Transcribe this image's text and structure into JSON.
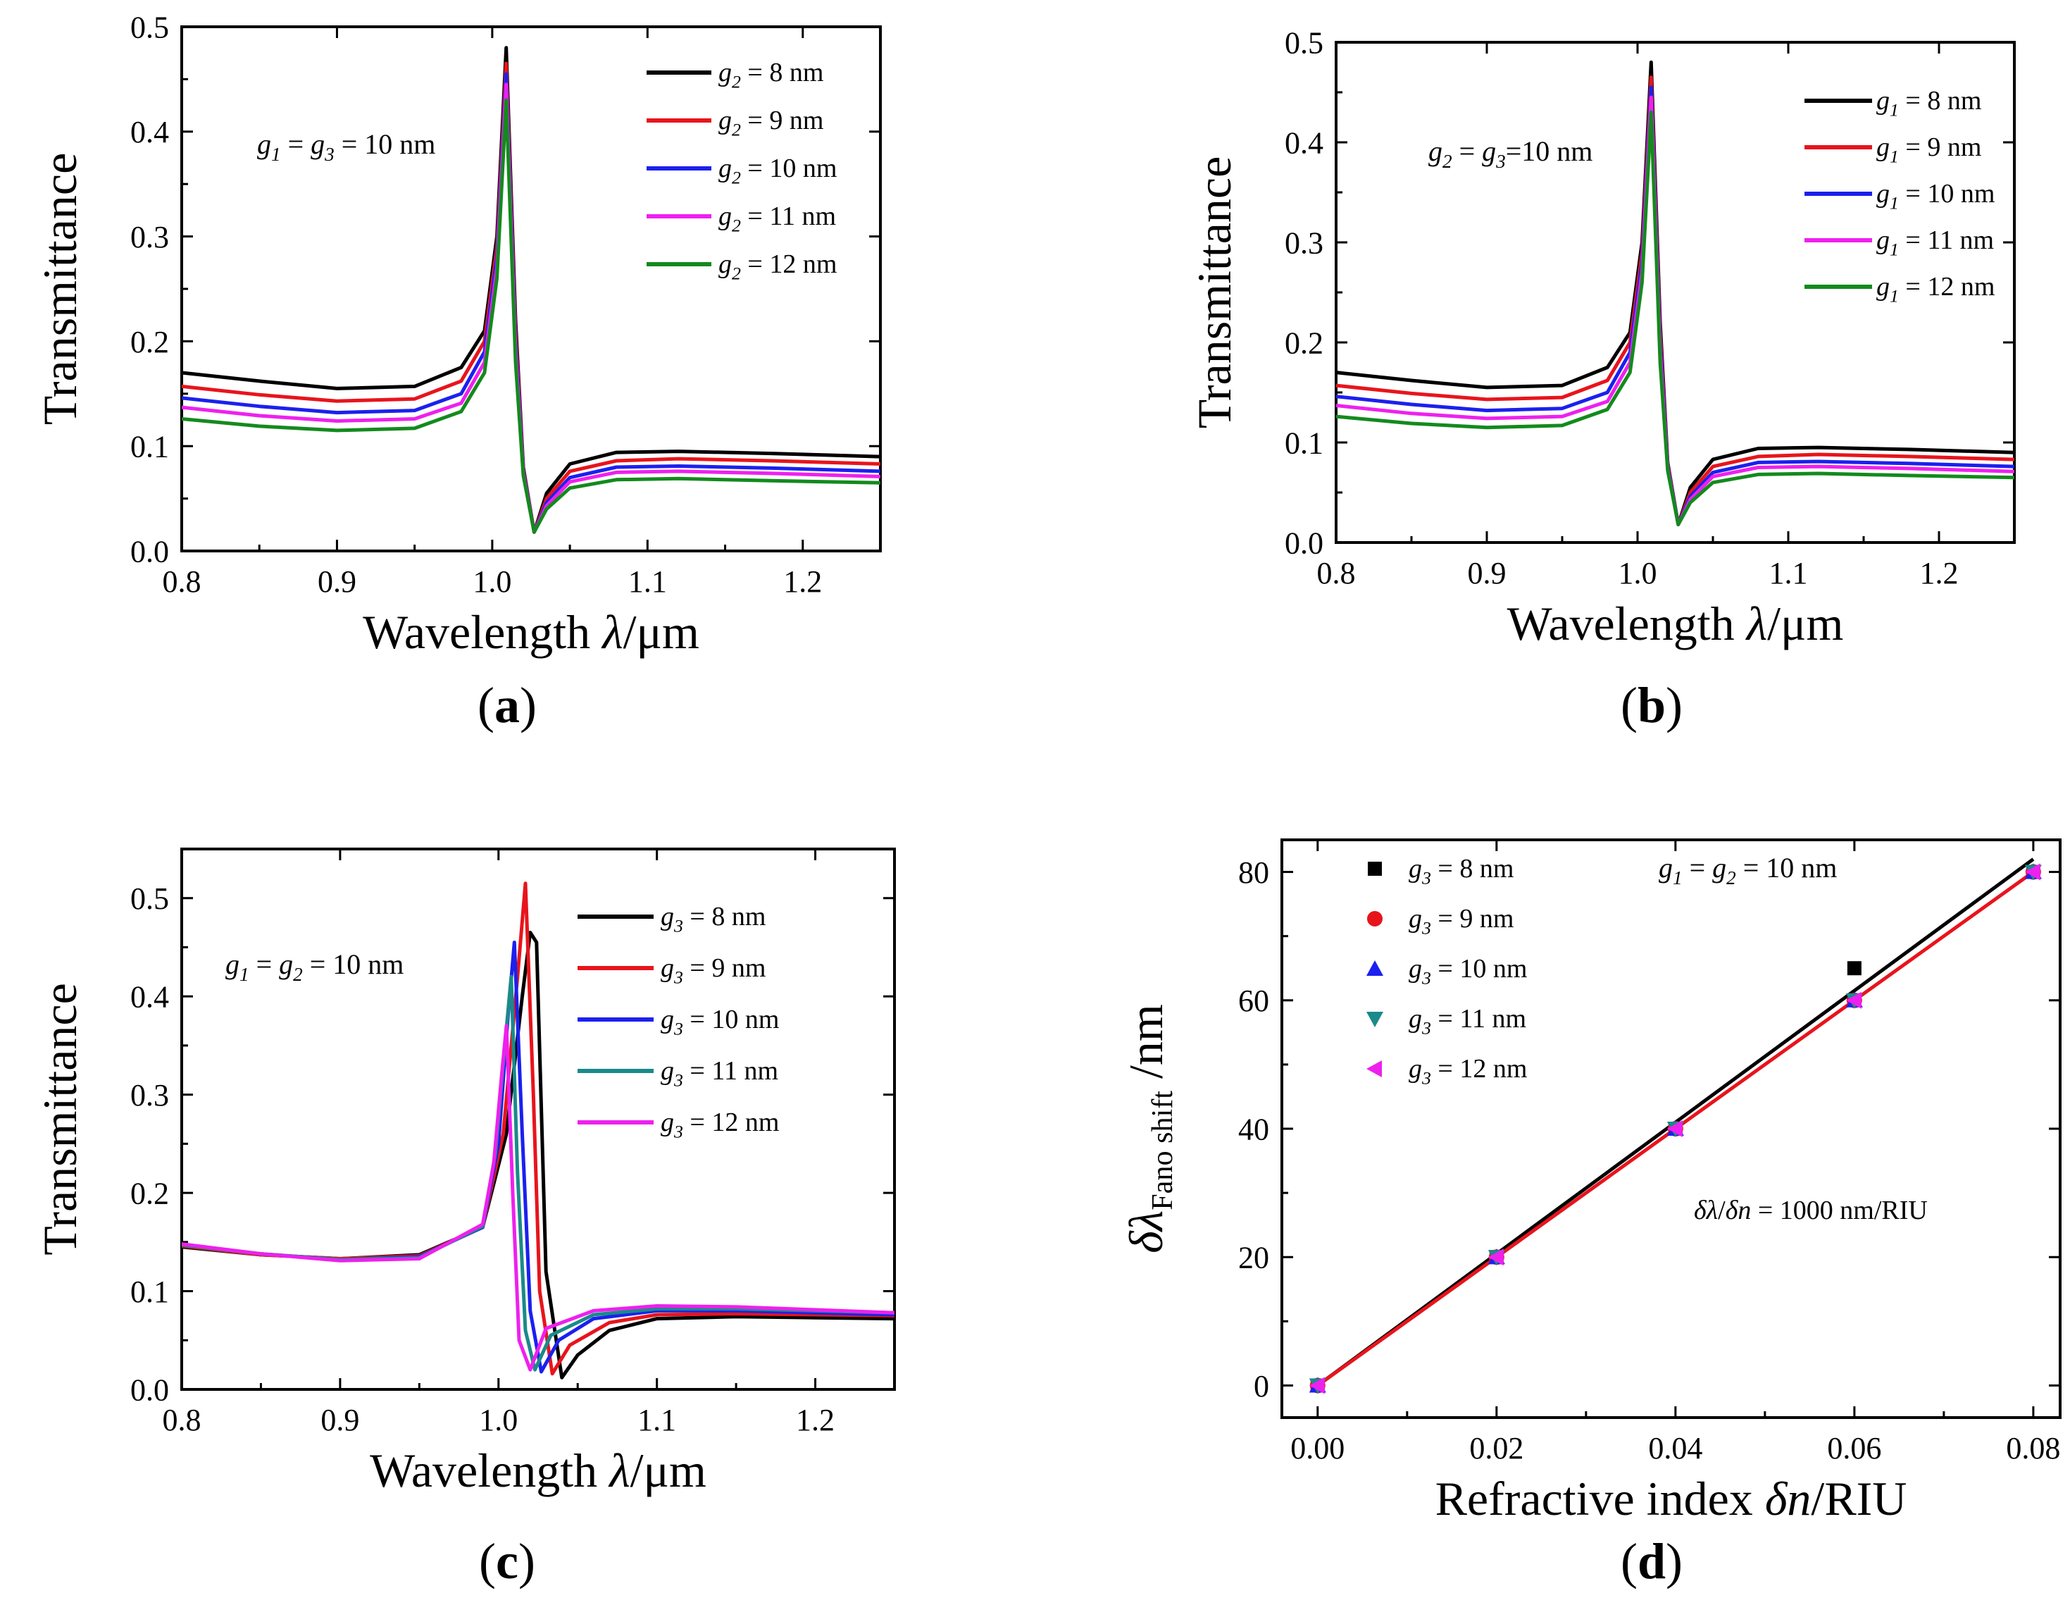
{
  "chart_data": [
    {
      "panel": "(a)",
      "type": "line",
      "xlabel": "Wavelength λ/μm",
      "ylabel": "Transmittance",
      "xlim": [
        0.8,
        1.25
      ],
      "ylim": [
        0.0,
        0.5
      ],
      "xticks": [
        "0.8",
        "0.9",
        "1.0",
        "1.1",
        "1.2"
      ],
      "yticks": [
        "0.0",
        "0.1",
        "0.2",
        "0.3",
        "0.4",
        "0.5"
      ],
      "annotation": "g1 = g3 = 10 nm",
      "legend_position": "top-right",
      "series": [
        {
          "name": "g2 = 8 nm",
          "color": "#000000",
          "x": [
            0.8,
            0.85,
            0.9,
            0.95,
            0.98,
            0.995,
            1.003,
            1.009,
            1.015,
            1.02,
            1.027,
            1.035,
            1.05,
            1.08,
            1.12,
            1.18,
            1.25
          ],
          "y": [
            0.17,
            0.162,
            0.155,
            0.157,
            0.175,
            0.21,
            0.3,
            0.48,
            0.22,
            0.08,
            0.018,
            0.055,
            0.083,
            0.094,
            0.095,
            0.093,
            0.09
          ]
        },
        {
          "name": "g2 = 9 nm",
          "color": "#e8141c",
          "x": [
            0.8,
            0.85,
            0.9,
            0.95,
            0.98,
            0.995,
            1.003,
            1.009,
            1.015,
            1.02,
            1.027,
            1.035,
            1.05,
            1.08,
            1.12,
            1.18,
            1.25
          ],
          "y": [
            0.157,
            0.149,
            0.143,
            0.145,
            0.162,
            0.2,
            0.29,
            0.465,
            0.21,
            0.078,
            0.018,
            0.05,
            0.076,
            0.086,
            0.088,
            0.086,
            0.083
          ]
        },
        {
          "name": "g2 = 10 nm",
          "color": "#1b20ee",
          "x": [
            0.8,
            0.85,
            0.9,
            0.95,
            0.98,
            0.995,
            1.003,
            1.009,
            1.015,
            1.02,
            1.027,
            1.035,
            1.05,
            1.08,
            1.12,
            1.18,
            1.25
          ],
          "y": [
            0.146,
            0.138,
            0.132,
            0.134,
            0.15,
            0.19,
            0.28,
            0.455,
            0.2,
            0.076,
            0.018,
            0.046,
            0.07,
            0.08,
            0.081,
            0.079,
            0.076
          ]
        },
        {
          "name": "g2 = 11 nm",
          "color": "#ee20ee",
          "x": [
            0.8,
            0.85,
            0.9,
            0.95,
            0.98,
            0.995,
            1.003,
            1.009,
            1.015,
            1.02,
            1.027,
            1.035,
            1.05,
            1.08,
            1.12,
            1.18,
            1.25
          ],
          "y": [
            0.137,
            0.129,
            0.124,
            0.126,
            0.141,
            0.18,
            0.27,
            0.445,
            0.19,
            0.074,
            0.018,
            0.043,
            0.066,
            0.075,
            0.076,
            0.074,
            0.071
          ]
        },
        {
          "name": "g2 = 12 nm",
          "color": "#138a1d",
          "x": [
            0.8,
            0.85,
            0.9,
            0.95,
            0.98,
            0.995,
            1.003,
            1.009,
            1.015,
            1.02,
            1.027,
            1.035,
            1.05,
            1.08,
            1.12,
            1.18,
            1.25
          ],
          "y": [
            0.126,
            0.119,
            0.115,
            0.117,
            0.133,
            0.17,
            0.26,
            0.43,
            0.18,
            0.072,
            0.018,
            0.04,
            0.06,
            0.068,
            0.069,
            0.067,
            0.065
          ]
        }
      ]
    },
    {
      "panel": "(b)",
      "type": "line",
      "xlabel": "Wavelength λ/μm",
      "ylabel": "Transmittance",
      "xlim": [
        0.8,
        1.25
      ],
      "ylim": [
        0.0,
        0.5
      ],
      "xticks": [
        "0.8",
        "0.9",
        "1.0",
        "1.1",
        "1.2"
      ],
      "yticks": [
        "0.0",
        "0.1",
        "0.2",
        "0.3",
        "0.4",
        "0.5"
      ],
      "annotation": "g2 = g3=10 nm",
      "legend_position": "top-right",
      "series": [
        {
          "name": "g1 = 8 nm",
          "color": "#000000",
          "x": [
            0.8,
            0.85,
            0.9,
            0.95,
            0.98,
            0.995,
            1.003,
            1.009,
            1.015,
            1.02,
            1.027,
            1.035,
            1.05,
            1.08,
            1.12,
            1.18,
            1.25
          ],
          "y": [
            0.17,
            0.162,
            0.155,
            0.157,
            0.175,
            0.21,
            0.3,
            0.48,
            0.22,
            0.08,
            0.018,
            0.055,
            0.083,
            0.094,
            0.095,
            0.093,
            0.09
          ]
        },
        {
          "name": "g1 = 9 nm",
          "color": "#e8141c",
          "x": [
            0.8,
            0.85,
            0.9,
            0.95,
            0.98,
            0.995,
            1.003,
            1.009,
            1.015,
            1.02,
            1.027,
            1.035,
            1.05,
            1.08,
            1.12,
            1.18,
            1.25
          ],
          "y": [
            0.157,
            0.149,
            0.143,
            0.145,
            0.162,
            0.2,
            0.29,
            0.465,
            0.21,
            0.078,
            0.018,
            0.05,
            0.076,
            0.086,
            0.088,
            0.086,
            0.083
          ]
        },
        {
          "name": "g1 = 10 nm",
          "color": "#1b20ee",
          "x": [
            0.8,
            0.85,
            0.9,
            0.95,
            0.98,
            0.995,
            1.003,
            1.009,
            1.015,
            1.02,
            1.027,
            1.035,
            1.05,
            1.08,
            1.12,
            1.18,
            1.25
          ],
          "y": [
            0.146,
            0.138,
            0.132,
            0.134,
            0.15,
            0.19,
            0.28,
            0.455,
            0.2,
            0.076,
            0.018,
            0.046,
            0.07,
            0.08,
            0.081,
            0.079,
            0.076
          ]
        },
        {
          "name": "g1 = 11 nm",
          "color": "#ee20ee",
          "x": [
            0.8,
            0.85,
            0.9,
            0.95,
            0.98,
            0.995,
            1.003,
            1.009,
            1.015,
            1.02,
            1.027,
            1.035,
            1.05,
            1.08,
            1.12,
            1.18,
            1.25
          ],
          "y": [
            0.137,
            0.129,
            0.124,
            0.126,
            0.141,
            0.18,
            0.27,
            0.445,
            0.19,
            0.074,
            0.018,
            0.043,
            0.066,
            0.075,
            0.076,
            0.074,
            0.071
          ]
        },
        {
          "name": "g1 = 12 nm",
          "color": "#138a1d",
          "x": [
            0.8,
            0.85,
            0.9,
            0.95,
            0.98,
            0.995,
            1.003,
            1.009,
            1.015,
            1.02,
            1.027,
            1.035,
            1.05,
            1.08,
            1.12,
            1.18,
            1.25
          ],
          "y": [
            0.126,
            0.119,
            0.115,
            0.117,
            0.133,
            0.17,
            0.26,
            0.43,
            0.18,
            0.072,
            0.018,
            0.04,
            0.06,
            0.068,
            0.069,
            0.067,
            0.065
          ]
        }
      ]
    },
    {
      "panel": "(c)",
      "type": "line",
      "xlabel": "Wavelength λ/μm",
      "ylabel": "Transmittance",
      "xlim": [
        0.8,
        1.25
      ],
      "ylim": [
        0.0,
        0.55
      ],
      "xticks": [
        "0.8",
        "0.9",
        "1.0",
        "1.1",
        "1.2"
      ],
      "yticks": [
        "0.0",
        "0.1",
        "0.2",
        "0.3",
        "0.4",
        "0.5"
      ],
      "annotation": "g1 = g2 = 10 nm",
      "legend_position": "top-right",
      "series": [
        {
          "name": "g3 = 8 nm",
          "color": "#000000",
          "x": [
            0.8,
            0.85,
            0.9,
            0.95,
            0.99,
            1.005,
            1.015,
            1.02,
            1.024,
            1.03,
            1.04,
            1.05,
            1.07,
            1.1,
            1.15,
            1.2,
            1.25
          ],
          "y": [
            0.145,
            0.137,
            0.133,
            0.137,
            0.165,
            0.26,
            0.4,
            0.465,
            0.455,
            0.12,
            0.012,
            0.035,
            0.06,
            0.072,
            0.074,
            0.073,
            0.072
          ]
        },
        {
          "name": "g3 = 9 nm",
          "color": "#e8141c",
          "x": [
            0.8,
            0.85,
            0.9,
            0.95,
            0.99,
            1.003,
            1.012,
            1.017,
            1.022,
            1.026,
            1.034,
            1.045,
            1.07,
            1.1,
            1.15,
            1.2,
            1.25
          ],
          "y": [
            0.146,
            0.137,
            0.133,
            0.136,
            0.165,
            0.26,
            0.42,
            0.515,
            0.3,
            0.1,
            0.016,
            0.045,
            0.068,
            0.076,
            0.077,
            0.076,
            0.075
          ]
        },
        {
          "name": "g3 = 10 nm",
          "color": "#1b20ee",
          "x": [
            0.8,
            0.85,
            0.9,
            0.95,
            0.99,
            1.0,
            1.006,
            1.01,
            1.015,
            1.02,
            1.027,
            1.038,
            1.06,
            1.1,
            1.15,
            1.2,
            1.25
          ],
          "y": [
            0.147,
            0.138,
            0.132,
            0.135,
            0.165,
            0.25,
            0.38,
            0.455,
            0.26,
            0.08,
            0.018,
            0.05,
            0.072,
            0.08,
            0.08,
            0.078,
            0.076
          ]
        },
        {
          "name": "g3 = 11 nm",
          "color": "#1a8a8a",
          "x": [
            0.8,
            0.85,
            0.9,
            0.95,
            0.99,
            0.998,
            1.004,
            1.008,
            1.012,
            1.017,
            1.023,
            1.033,
            1.06,
            1.1,
            1.15,
            1.2,
            1.25
          ],
          "y": [
            0.147,
            0.138,
            0.132,
            0.134,
            0.166,
            0.24,
            0.35,
            0.42,
            0.22,
            0.06,
            0.02,
            0.055,
            0.076,
            0.082,
            0.082,
            0.08,
            0.078
          ]
        },
        {
          "name": "g3 = 12 nm",
          "color": "#ee20ee",
          "x": [
            0.8,
            0.85,
            0.9,
            0.95,
            0.99,
            0.997,
            1.002,
            1.005,
            1.009,
            1.013,
            1.02,
            1.03,
            1.06,
            1.1,
            1.15,
            1.2,
            1.25
          ],
          "y": [
            0.148,
            0.138,
            0.131,
            0.133,
            0.168,
            0.23,
            0.32,
            0.37,
            0.2,
            0.05,
            0.02,
            0.062,
            0.08,
            0.085,
            0.084,
            0.081,
            0.078
          ]
        }
      ]
    },
    {
      "panel": "(d)",
      "type": "scatter",
      "xlabel": "Refractive index δn/RIU",
      "ylabel": "δλFano shift /nm",
      "xlim": [
        -0.004,
        0.083
      ],
      "ylim": [
        -5,
        85
      ],
      "xticks": [
        "0.00",
        "0.02",
        "0.04",
        "0.06",
        "0.08"
      ],
      "yticks": [
        "0",
        "20",
        "40",
        "60",
        "80"
      ],
      "annotation": "g1 = g2 = 10 nm",
      "annotation2": "δλ/δn = 1000 nm/RIU",
      "legend_position": "top-left",
      "series": [
        {
          "name": "g3 = 8 nm",
          "color": "#000000",
          "marker": "square",
          "x": [
            0.0,
            0.02,
            0.04,
            0.06,
            0.08
          ],
          "y": [
            0,
            20,
            40,
            65,
            80
          ]
        },
        {
          "name": "g3 = 9 nm",
          "color": "#e8141c",
          "marker": "circle",
          "x": [
            0.0,
            0.02,
            0.04,
            0.06,
            0.08
          ],
          "y": [
            0,
            20,
            40,
            60,
            80
          ]
        },
        {
          "name": "g3 = 10 nm",
          "color": "#1b20ee",
          "marker": "triangle-up",
          "x": [
            0.0,
            0.02,
            0.04,
            0.06,
            0.08
          ],
          "y": [
            0,
            20,
            40,
            60,
            80
          ]
        },
        {
          "name": "g3 = 11 nm",
          "color": "#1a8a8a",
          "marker": "triangle-down",
          "x": [
            0.0,
            0.02,
            0.04,
            0.06,
            0.08
          ],
          "y": [
            0,
            20,
            40,
            60,
            80
          ]
        },
        {
          "name": "g3 = 12 nm",
          "color": "#ee20ee",
          "marker": "triangle-left",
          "x": [
            0.0,
            0.02,
            0.04,
            0.06,
            0.08
          ],
          "y": [
            0,
            20,
            40,
            60,
            80
          ]
        }
      ],
      "fit_lines": [
        {
          "color": "#000000",
          "x": [
            0.0,
            0.08
          ],
          "y": [
            0,
            82
          ]
        },
        {
          "color": "#e8141c",
          "x": [
            0.0,
            0.08
          ],
          "y": [
            0,
            80
          ]
        }
      ]
    }
  ]
}
